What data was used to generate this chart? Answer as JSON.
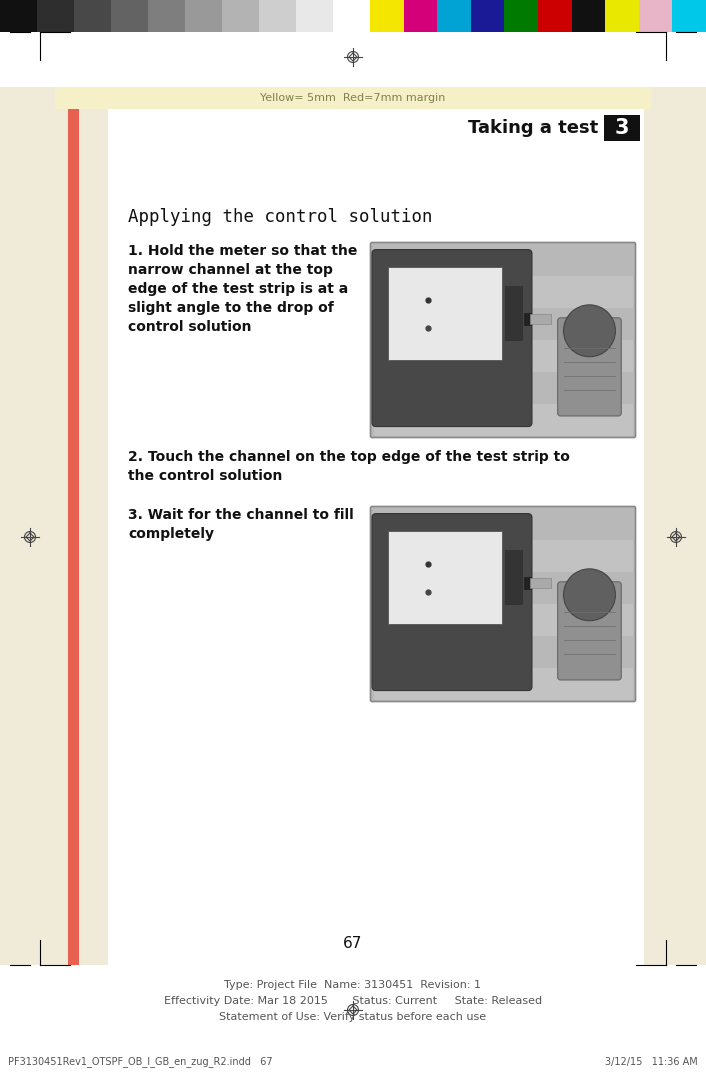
{
  "fig_width": 7.06,
  "fig_height": 10.75,
  "dpi": 100,
  "gray_bar_colors": [
    "#111111",
    "#2e2e2e",
    "#484848",
    "#636363",
    "#7e7e7e",
    "#999999",
    "#b3b3b3",
    "#cecece",
    "#e8e8e8",
    "#ffffff"
  ],
  "color_bar_colors": [
    "#f5e600",
    "#d4007a",
    "#00a3d4",
    "#1a1a96",
    "#007a00",
    "#cc0000",
    "#111111",
    "#e8e800",
    "#e8b4c8",
    "#00c8e8"
  ],
  "yellow_band_bg": "#f5f0c8",
  "yellow_text": "Yellow= 5mm  Red=7mm margin",
  "yellow_text_color": "#808050",
  "outer_bg": "#f0ead8",
  "content_bg": "#ffffff",
  "left_red_bar_color": "#e86050",
  "title_text": "Taking a test",
  "chapter_num": "3",
  "section_heading": "Applying the control solution",
  "step1": "1. Hold the meter so that the\nnarrow channel at the top\nedge of the test strip is at a\nslight angle to the drop of\ncontrol solution",
  "step2": "2. Touch the channel on the top edge of the test strip to\nthe control solution",
  "step3": "3. Wait for the channel to fill\ncompletely",
  "page_num": "67",
  "footer_line1": "Type: Project File  Name: 3130451  Revision: 1",
  "footer_line2": "Effectivity Date: Mar 18 2015       Status: Current     State: Released",
  "footer_line3": "Statement of Use: Verify status before each use",
  "footer_left": "PF3130451Rev1_OTSPF_OB_I_GB_en_zug_R2.indd   67",
  "footer_right": "3/12/15   11:36 AM",
  "crosshair_color": "#444444",
  "reg_line_color": "#000000"
}
